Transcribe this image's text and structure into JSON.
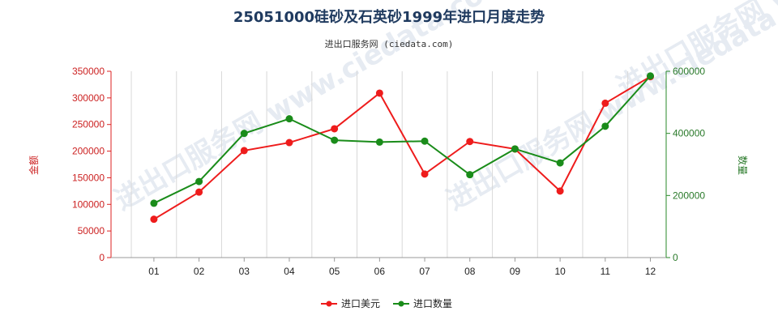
{
  "chart_data": {
    "type": "line",
    "title": "25051000硅砂及石英砂1999年进口月度走势",
    "subtitle": "进出口服务网 (ciedata.com)",
    "categories": [
      "01",
      "02",
      "03",
      "04",
      "05",
      "06",
      "07",
      "08",
      "09",
      "10",
      "11",
      "12"
    ],
    "y_left": {
      "label": "金额",
      "range": [
        0,
        350000
      ],
      "ticks": [
        "0",
        "50000",
        "100000",
        "150000",
        "200000",
        "250000",
        "300000",
        "350000"
      ],
      "color": "#dd2222"
    },
    "y_right": {
      "label": "数量",
      "range": [
        0,
        600000
      ],
      "ticks": [
        "0",
        "200000",
        "400000",
        "600000"
      ],
      "color": "#2a8a2a"
    },
    "series": [
      {
        "name": "进口美元",
        "axis": "left",
        "color": "#ee1c1c",
        "values": [
          72000,
          123000,
          201000,
          216000,
          242000,
          309000,
          157000,
          218000,
          204000,
          125000,
          290000,
          340000
        ]
      },
      {
        "name": "进口数量",
        "axis": "right",
        "color": "#1a8c1a",
        "values": [
          175000,
          245000,
          400000,
          447000,
          378000,
          372000,
          375000,
          267000,
          350000,
          305000,
          423000,
          585000
        ]
      }
    ],
    "grid": "vertical",
    "legend_position": "bottom-center",
    "watermark": "进出口服务网 www.ciedata.com"
  }
}
